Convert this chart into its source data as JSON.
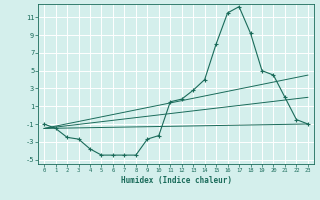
{
  "xlabel": "Humidex (Indice chaleur)",
  "bg_color": "#d4efec",
  "grid_color": "#ffffff",
  "line_color": "#1a6b5a",
  "xlim": [
    -0.5,
    23.5
  ],
  "ylim": [
    -5.5,
    12.5
  ],
  "xticks": [
    0,
    1,
    2,
    3,
    4,
    5,
    6,
    7,
    8,
    9,
    10,
    11,
    12,
    13,
    14,
    15,
    16,
    17,
    18,
    19,
    20,
    21,
    22,
    23
  ],
  "yticks": [
    -5,
    -3,
    -1,
    1,
    3,
    5,
    7,
    9,
    11
  ],
  "main_x": [
    0,
    1,
    2,
    3,
    4,
    5,
    6,
    7,
    8,
    9,
    10,
    11,
    12,
    13,
    14,
    15,
    16,
    17,
    18,
    19,
    20,
    21,
    22,
    23
  ],
  "main_y": [
    -1,
    -1.5,
    -2.5,
    -2.7,
    -3.8,
    -4.5,
    -4.5,
    -4.5,
    -4.5,
    -2.7,
    -2.3,
    1.5,
    1.8,
    2.8,
    4.0,
    8.0,
    11.5,
    12.2,
    9.2,
    5.0,
    4.5,
    2.0,
    -0.5,
    -1.0
  ],
  "line2_x": [
    0,
    23
  ],
  "line2_y": [
    -1.5,
    -1.0
  ],
  "line3_x": [
    0,
    23
  ],
  "line3_y": [
    -1.5,
    2.0
  ],
  "line4_x": [
    0,
    23
  ],
  "line4_y": [
    -1.5,
    4.5
  ]
}
